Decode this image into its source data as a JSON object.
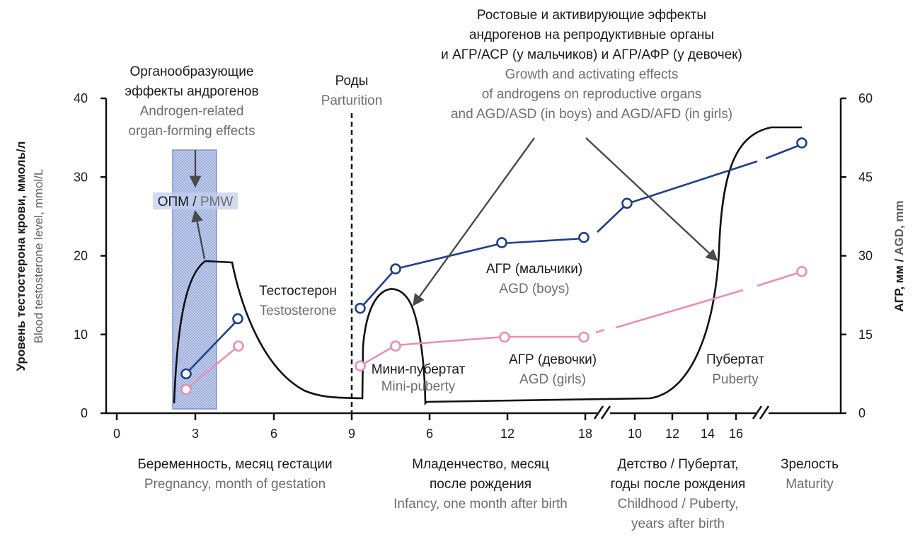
{
  "chart_data": {
    "type": "line",
    "left_axis": {
      "title_ru": "Уровень тестостерона крови, ммоль/л",
      "title_en": "Blood testosterone level, mmol/L",
      "ticks": [
        "0",
        "10",
        "20",
        "30",
        "40"
      ],
      "ylim": [
        0,
        40
      ]
    },
    "right_axis": {
      "title_ru": "АГР, мм",
      "title_sep": " / ",
      "title_en": "AGD, mm",
      "ticks": [
        "0",
        "15",
        "30",
        "45",
        "60"
      ],
      "ylim": [
        0,
        60
      ]
    },
    "x_ticks": [
      "0",
      "3",
      "6",
      "9",
      "6",
      "12",
      "18",
      "10",
      "12",
      "14",
      "16"
    ],
    "sections": [
      {
        "ru": [
          "Беременность, месяц гестации"
        ],
        "en": [
          "Pregnancy, month of gestation"
        ]
      },
      {
        "ru": [
          "Младенчество, месяц",
          "после рождения"
        ],
        "en": [
          "Infancy, one month after birth"
        ]
      },
      {
        "ru": [
          "Детство / Пубертат,",
          "годы после рождения"
        ],
        "en": [
          "Childhood / Puberty,",
          "years after birth"
        ]
      },
      {
        "ru": [
          "Зрелость"
        ],
        "en": [
          "Maturity"
        ]
      }
    ],
    "annotations": {
      "organ_forming": {
        "ru": [
          "Органообразующие",
          "эффекты андрогенов"
        ],
        "en": [
          "Androgen-related",
          "organ-forming effects"
        ]
      },
      "pmw": {
        "ru": "ОПМ",
        "sep": " / ",
        "en": "PMW"
      },
      "parturition": {
        "ru": "Роды",
        "en": "Parturition"
      },
      "growth_effects": {
        "ru": [
          "Ростовые и активирующие эффекты",
          "андрогенов на репродуктивные органы",
          "и АГР/АСР (у мальчиков) и АГР/АФР (у девочек)"
        ],
        "en": [
          "Growth and activating effects",
          "of androgens on reproductive organs",
          "and AGD/ASD (in boys) and AGD/AFD (in girls)"
        ]
      },
      "testosterone": {
        "ru": "Тестостерон",
        "en": "Testosterone"
      },
      "mini_puberty": {
        "ru": "Мини-пубертат",
        "en": "Mini-puberty"
      },
      "agd_boys": {
        "ru": "АГР (мальчики)",
        "en": "AGD (boys)"
      },
      "agd_girls": {
        "ru": "АГР (девочки)",
        "en": "AGD (girls)"
      },
      "puberty": {
        "ru": "Пубертат",
        "en": "Puberty"
      }
    },
    "series": [
      {
        "name": "Testosterone",
        "axis": "left",
        "shape": "curve",
        "approx_values": [
          {
            "period": "gestation month 3",
            "value": 19.2
          },
          {
            "period": "birth (month 9)",
            "value": 1.8
          },
          {
            "period": "infancy peak, month 2-3",
            "value": 15.2
          },
          {
            "period": "childhood",
            "value": 1.8
          },
          {
            "period": "maturity",
            "value": 36.5
          }
        ]
      },
      {
        "name": "AGD (boys)",
        "axis": "right",
        "points": [
          {
            "x": "gestation month 2.7",
            "value": 7.5
          },
          {
            "x": "gestation month 4.7",
            "value": 18.0
          },
          {
            "x": "infancy month 0.5",
            "value": 20.0
          },
          {
            "x": "infancy month 3",
            "value": 27.5
          },
          {
            "x": "infancy month 12",
            "value": 32.5
          },
          {
            "x": "infancy month 18",
            "value": 33.5
          },
          {
            "x": "childhood year 10",
            "value": 40.0
          },
          {
            "x": "maturity",
            "value": 51.5
          }
        ]
      },
      {
        "name": "AGD (girls)",
        "axis": "right",
        "points": [
          {
            "x": "gestation month 2.7",
            "value": 4.5
          },
          {
            "x": "gestation month 4.7",
            "value": 12.8
          },
          {
            "x": "infancy month 0.5",
            "value": 9.0
          },
          {
            "x": "infancy month 3",
            "value": 12.8
          },
          {
            "x": "infancy month 12",
            "value": 14.5
          },
          {
            "x": "infancy month 18",
            "value": 14.5
          },
          {
            "x": "maturity",
            "value": 27.0
          }
        ]
      }
    ],
    "colors": {
      "testosterone": "#111111",
      "boys": "#1e3f8a",
      "girls": "#e98fb5",
      "pmw_fill": "#b9c6e8",
      "arrow": "#4a4a4a"
    }
  }
}
